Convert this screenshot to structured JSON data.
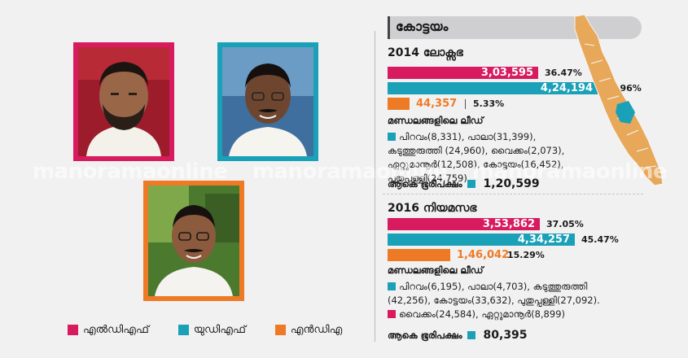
{
  "district": "കോട്ടയം",
  "watermark": "manoramaonline",
  "legend": [
    {
      "label": "എൽഡിഎഫ്",
      "color": "#d81b5f"
    },
    {
      "label": "യുഡിഎഫ്",
      "color": "#1aa1b8"
    },
    {
      "label": "എൻഡിഎ",
      "color": "#ef7a25"
    }
  ],
  "colors": {
    "ldf": "#d81b5f",
    "udf": "#1aa1b8",
    "nda": "#ef7a25"
  },
  "chart_data": [
    {
      "type": "bar",
      "title": "2014 ലോക്സഭ",
      "categories": [
        "LDF",
        "UDF",
        "NDA"
      ],
      "values": [
        303595,
        424194,
        44357
      ],
      "value_labels": [
        "3,03,595",
        "4,24,194",
        "44,357"
      ],
      "percent_labels": [
        "36.47%",
        "50.96%",
        "5.33%"
      ],
      "lead_heading": "മണ്ഡലങ്ങളിലെ ലീഡ്",
      "lead_udf": "പിറവം(8,331), പാലാ(31,399), കടുത്തുരുത്തി (24,960), വൈക്കം(2,073), ഏറ്റുമാനൂർ(12,508), കോട്ടയം(16,452), പുതുപ്പള്ളി(24,759)",
      "total_label": "ആകെ ഭൂരിപക്ഷം",
      "total_value": "1,20,599"
    },
    {
      "type": "bar",
      "title": "2016 നിയമസഭ",
      "categories": [
        "LDF",
        "UDF",
        "NDA"
      ],
      "values": [
        353862,
        434257,
        146042
      ],
      "value_labels": [
        "3,53,862",
        "4,34,257",
        "1,46,042"
      ],
      "percent_labels": [
        "37.05%",
        "45.47%",
        "15.29%"
      ],
      "lead_heading": "മണ്ഡലങ്ങളിലെ ലീഡ്",
      "lead_udf": "പിറവം(6,195), പാലാ(4,703), കടുത്തുരുത്തി (42,256), കോട്ടയം(33,632), പുതുപ്പള്ളി(27,092).",
      "lead_ldf": "വൈക്കം(24,584), ഏറ്റുമാനൂർ(8,899)",
      "total_label": "ആകെ ഭൂരിപക്ഷം",
      "total_value": "80,395"
    }
  ]
}
